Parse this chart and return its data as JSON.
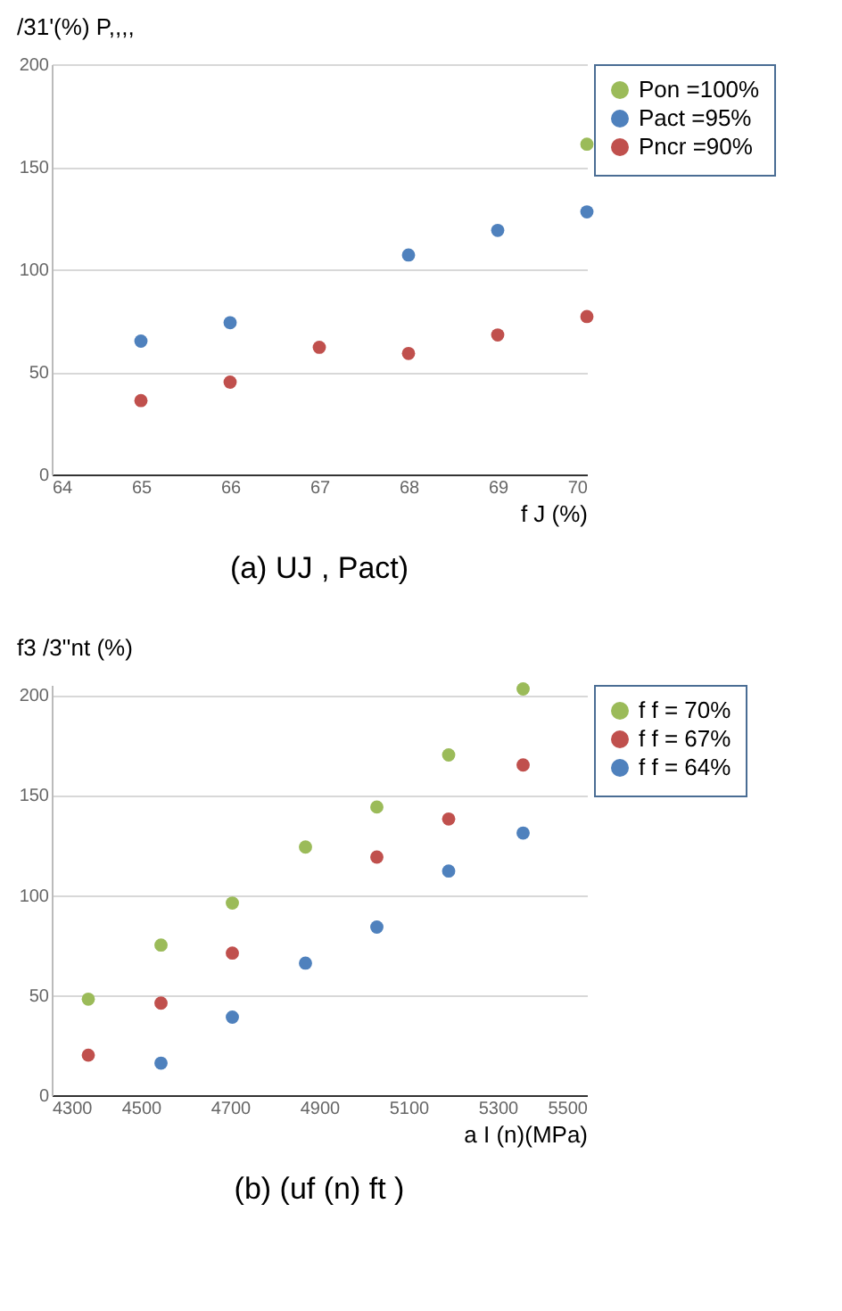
{
  "chart_data": [
    {
      "type": "scatter",
      "title": "(a) UJ , Pact)",
      "ylabel": "/31'(%) P,,,,",
      "xlabel": "f J (%)",
      "xlim": [
        64,
        70
      ],
      "xticks": [
        64,
        65,
        66,
        67,
        68,
        69,
        70
      ],
      "ylim": [
        0,
        200
      ],
      "yticks": [
        0,
        50,
        100,
        150,
        200
      ],
      "grid": "y",
      "legend": "top right",
      "marker": "circle",
      "series": [
        {
          "name": "Pon =100%",
          "color": "#9bbb59",
          "x": [
            70
          ],
          "values": [
            161
          ]
        },
        {
          "name": "Pact =95%",
          "color": "#4f81bd",
          "x": [
            65,
            66,
            68,
            69,
            70
          ],
          "values": [
            65,
            74,
            107,
            119,
            128
          ]
        },
        {
          "name": "Pncr =90%",
          "color": "#c0504d",
          "x": [
            65,
            66,
            67,
            68,
            69,
            70
          ],
          "values": [
            36,
            45,
            62,
            59,
            68,
            77
          ]
        }
      ]
    },
    {
      "type": "scatter",
      "title": "(b) (uf (n) ft )",
      "ylabel": "f3 /3''nt (%)",
      "xlabel": "a I (n)(MPa)",
      "xlim": [
        4300,
        5500
      ],
      "xticks": [
        4300,
        4500,
        4700,
        4900,
        5100,
        5300,
        5500
      ],
      "ylim": [
        0,
        205
      ],
      "yticks": [
        0,
        50,
        100,
        150,
        200
      ],
      "grid": "y",
      "legend": "top right",
      "marker": "circle",
      "series": [
        {
          "name": "f f = 70%",
          "color": "#9bbb59",
          "x": [
            4382,
            4545,
            4705,
            4869,
            5029,
            5190,
            5357
          ],
          "values": [
            48,
            75,
            96,
            124,
            144,
            170,
            203
          ]
        },
        {
          "name": "f f = 67%",
          "color": "#c0504d",
          "x": [
            4382,
            4545,
            4705,
            5029,
            5190,
            5357
          ],
          "values": [
            20,
            46,
            71,
            119,
            138,
            165
          ]
        },
        {
          "name": "f f = 64%",
          "color": "#4f81bd",
          "x": [
            4545,
            4705,
            4869,
            5029,
            5190,
            5357
          ],
          "values": [
            16,
            39,
            66,
            84,
            112,
            131
          ]
        }
      ]
    }
  ]
}
